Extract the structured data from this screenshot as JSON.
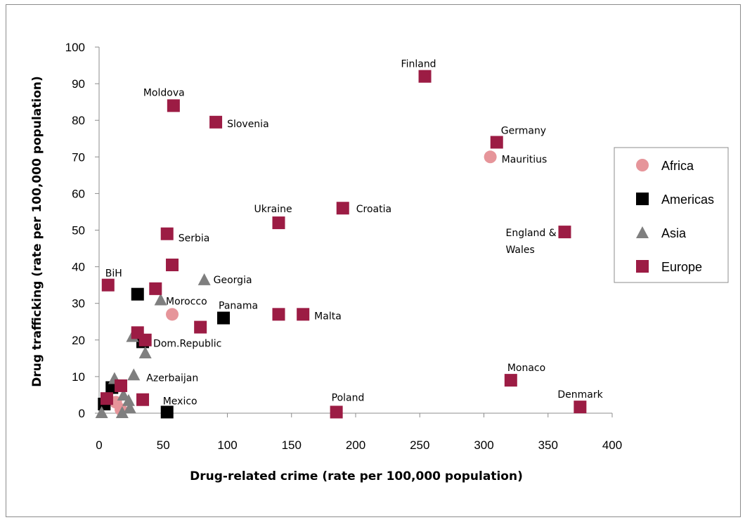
{
  "chart_data": {
    "type": "scatter",
    "title": "",
    "xlabel": "Drug-related crime (rate per 100,000 population)",
    "ylabel": "Drug trafficking (rate per 100,000 population)",
    "xlim": [
      0,
      400
    ],
    "ylim": [
      0,
      100
    ],
    "xticks": [
      0,
      50,
      100,
      150,
      200,
      250,
      300,
      350,
      400
    ],
    "yticks": [
      0,
      10,
      20,
      30,
      40,
      50,
      60,
      70,
      80,
      90,
      100
    ],
    "grid": false,
    "legend_position": "right",
    "series": [
      {
        "name": "Africa",
        "marker": "circle",
        "color": "#e6959a",
        "points": [
          {
            "x": 305,
            "y": 70,
            "label": "Mauritius"
          },
          {
            "x": 57,
            "y": 27,
            "label": "Morocco"
          },
          {
            "x": 13,
            "y": 3
          },
          {
            "x": 17,
            "y": 1
          }
        ]
      },
      {
        "name": "Americas",
        "marker": "square",
        "color": "#000000",
        "points": [
          {
            "x": 97,
            "y": 26,
            "label": "Panama"
          },
          {
            "x": 34,
            "y": 19.5,
            "label": "Dom.Republic"
          },
          {
            "x": 53,
            "y": 0.3,
            "label": "Mexico"
          },
          {
            "x": 30,
            "y": 32.5
          },
          {
            "x": 10,
            "y": 7
          },
          {
            "x": 4,
            "y": 2.5
          }
        ]
      },
      {
        "name": "Asia",
        "marker": "triangle",
        "color": "#7f7f7f",
        "points": [
          {
            "x": 82,
            "y": 36.5,
            "label": "Georgia"
          },
          {
            "x": 27,
            "y": 10.5,
            "label": "Azerbaijan"
          },
          {
            "x": 48,
            "y": 31
          },
          {
            "x": 26,
            "y": 21
          },
          {
            "x": 36,
            "y": 16.5
          },
          {
            "x": 12,
            "y": 9.5
          },
          {
            "x": 19,
            "y": 5
          },
          {
            "x": 23,
            "y": 3.5
          },
          {
            "x": 24,
            "y": 1.5
          },
          {
            "x": 18,
            "y": 0.2
          },
          {
            "x": 2,
            "y": 0.2
          }
        ]
      },
      {
        "name": "Europe",
        "marker": "square",
        "color": "#9c1c44",
        "points": [
          {
            "x": 254,
            "y": 92,
            "label": "Finland"
          },
          {
            "x": 58,
            "y": 84,
            "label": "Moldova"
          },
          {
            "x": 91,
            "y": 79.5,
            "label": "Slovenia"
          },
          {
            "x": 310,
            "y": 74,
            "label": "Germany"
          },
          {
            "x": 190,
            "y": 56,
            "label": "Croatia"
          },
          {
            "x": 140,
            "y": 52,
            "label": "Ukraine"
          },
          {
            "x": 363,
            "y": 49.5,
            "label": "England & Wales"
          },
          {
            "x": 53,
            "y": 49,
            "label": "Serbia"
          },
          {
            "x": 57,
            "y": 40.5
          },
          {
            "x": 7,
            "y": 35,
            "label": "BiH"
          },
          {
            "x": 44,
            "y": 34
          },
          {
            "x": 140,
            "y": 27
          },
          {
            "x": 159,
            "y": 27,
            "label": "Malta"
          },
          {
            "x": 79,
            "y": 23.5
          },
          {
            "x": 30,
            "y": 22
          },
          {
            "x": 36,
            "y": 20
          },
          {
            "x": 321,
            "y": 9,
            "label": "Monaco"
          },
          {
            "x": 17,
            "y": 7.5
          },
          {
            "x": 34,
            "y": 3.7
          },
          {
            "x": 6,
            "y": 4
          },
          {
            "x": 185,
            "y": 0.3,
            "label": "Poland"
          },
          {
            "x": 375,
            "y": 1.7,
            "label": "Denmark"
          }
        ]
      }
    ]
  }
}
